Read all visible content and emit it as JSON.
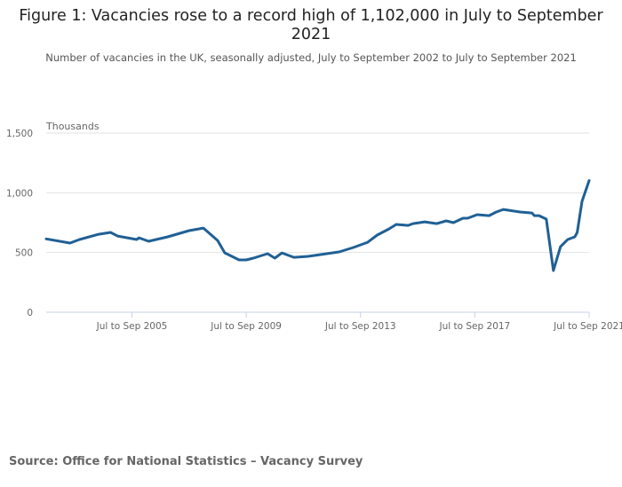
{
  "title": "Figure 1: Vacancies rose to a record high of 1,102,000 in July to September 2021",
  "subtitle": "Number of vacancies in the UK, seasonally adjusted, July to September 2002 to July to September 2021",
  "source": "Source: Office for National Statistics – Vacancy Survey",
  "chart_data": {
    "type": "line",
    "title": "Figure 1: Vacancies rose to a record high of 1,102,000 in July to September 2021",
    "ylabel": "Thousands",
    "ylim": [
      0,
      1500
    ],
    "yticks": [
      0,
      500,
      1000,
      1500
    ],
    "ytick_labels": [
      "0",
      "500",
      "1,000",
      "1,500"
    ],
    "xlim": [
      "Jul to Sep 2002",
      "Jul to Sep 2021"
    ],
    "xtick_labels": [
      "Jul to Sep 2005",
      "Jul to Sep 2009",
      "Jul to Sep 2013",
      "Jul to Sep 2017",
      "Jul to Sep 2021"
    ],
    "grid": "horizontal",
    "color": "#206095",
    "series": [
      {
        "x": [
          "Jul to Sep 2002",
          "May to Jul 2003",
          "Sep to Nov 2003",
          "May to Jul 2004",
          "Oct to Dec 2004",
          "Jan to Mar 2005",
          "Sep to Nov 2005",
          "Oct to Dec 2005",
          "Feb to Apr 2006",
          "Oct to Dec 2006",
          "Jul to Sep 2007",
          "Jan to Mar 2008",
          "Jul to Sep 2008",
          "Oct to Dec 2008",
          "Apr to Jun 2009",
          "Jul to Sep 2009",
          "Oct to Dec 2009",
          "Apr to Jun 2010",
          "Jul to Sep 2010",
          "Oct to Dec 2010",
          "Mar to May 2011",
          "Sep to Nov 2011",
          "Oct to Dec 2012",
          "Apr to Jun 2013",
          "Oct to Dec 2013",
          "Feb to Apr 2014",
          "Jul to Sep 2014",
          "Oct to Dec 2014",
          "Mar to May 2015",
          "May to Jul 2015",
          "Oct to Dec 2015",
          "Mar to May 2016",
          "Jul to Sep 2016",
          "Oct to Dec 2016",
          "Feb to Apr 2017",
          "Apr to Jun 2017",
          "Aug to Oct 2017",
          "Jan to Mar 2018",
          "Apr to Jun 2018",
          "Jul to Sep 2018",
          "Feb to Apr 2019",
          "Jul to Sep 2019",
          "Aug to Oct 2019",
          "Oct to Dec 2019",
          "Jan to Mar 2020",
          "Apr to Jun 2020",
          "Jul to Sep 2020",
          "Oct to Dec 2020",
          "Jan to Mar 2021",
          "Feb to Apr 2021",
          "Apr to Jun 2021",
          "Jul to Sep 2021"
        ],
        "y": [
          614,
          579,
          609,
          653,
          668,
          638,
          609,
          623,
          594,
          631,
          683,
          705,
          601,
          497,
          438,
          438,
          453,
          490,
          453,
          497,
          460,
          468,
          505,
          542,
          586,
          646,
          698,
          735,
          727,
          742,
          757,
          742,
          765,
          750,
          787,
          787,
          817,
          809,
          839,
          861,
          839,
          831,
          809,
          809,
          780,
          349,
          549,
          609,
          631,
          668,
          928,
          1102
        ]
      }
    ]
  }
}
